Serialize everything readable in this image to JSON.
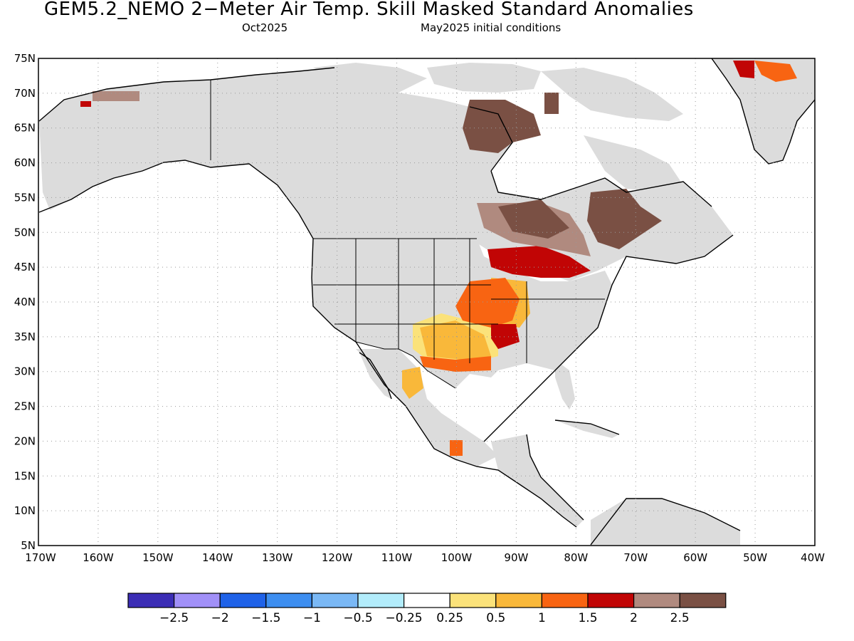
{
  "header": {
    "title": "GEM5.2_NEMO 2−Meter Air Temp. Skill Masked Standard Anomalies",
    "valid_month": "Oct2025",
    "init": "May2025 initial conditions"
  },
  "map": {
    "lat_ticks": [
      "75N",
      "70N",
      "65N",
      "60N",
      "55N",
      "50N",
      "45N",
      "40N",
      "35N",
      "30N",
      "25N",
      "20N",
      "15N",
      "10N",
      "5N"
    ],
    "lon_ticks": [
      "170W",
      "160W",
      "150W",
      "140W",
      "130W",
      "120W",
      "110W",
      "100W",
      "90W",
      "80W",
      "70W",
      "60W",
      "50W",
      "40W"
    ],
    "lat_range": [
      5,
      75
    ],
    "lon_range": [
      -170,
      -40
    ],
    "grid": "dotted",
    "masked_color": "#dcdcdc"
  },
  "colorbar": {
    "colors": [
      "#3b2db5",
      "#a190f8",
      "#1f62e8",
      "#3d8ef0",
      "#7ab8f5",
      "#b2ecfb",
      "#ffffff",
      "#fbe27a",
      "#f9b83a",
      "#f86412",
      "#c10505",
      "#b08a7f",
      "#7a5044"
    ],
    "labels": [
      "−2.5",
      "−2",
      "−1.5",
      "−1",
      "−0.5",
      "−0.25",
      "0.25",
      "0.5",
      "1",
      "1.5",
      "2",
      "2.5"
    ]
  },
  "anomaly_regions": [
    {
      "name": "central-us",
      "category": "0.5"
    },
    {
      "name": "mississippi-valley",
      "category": "1"
    },
    {
      "name": "great-lakes",
      "category": "2"
    },
    {
      "name": "hudson-bay-west",
      "category": "2.5"
    },
    {
      "name": "quebec",
      "category": "2.5"
    },
    {
      "name": "ontario",
      "category": ">2.5"
    },
    {
      "name": "greenland",
      "category": "1.5"
    }
  ]
}
